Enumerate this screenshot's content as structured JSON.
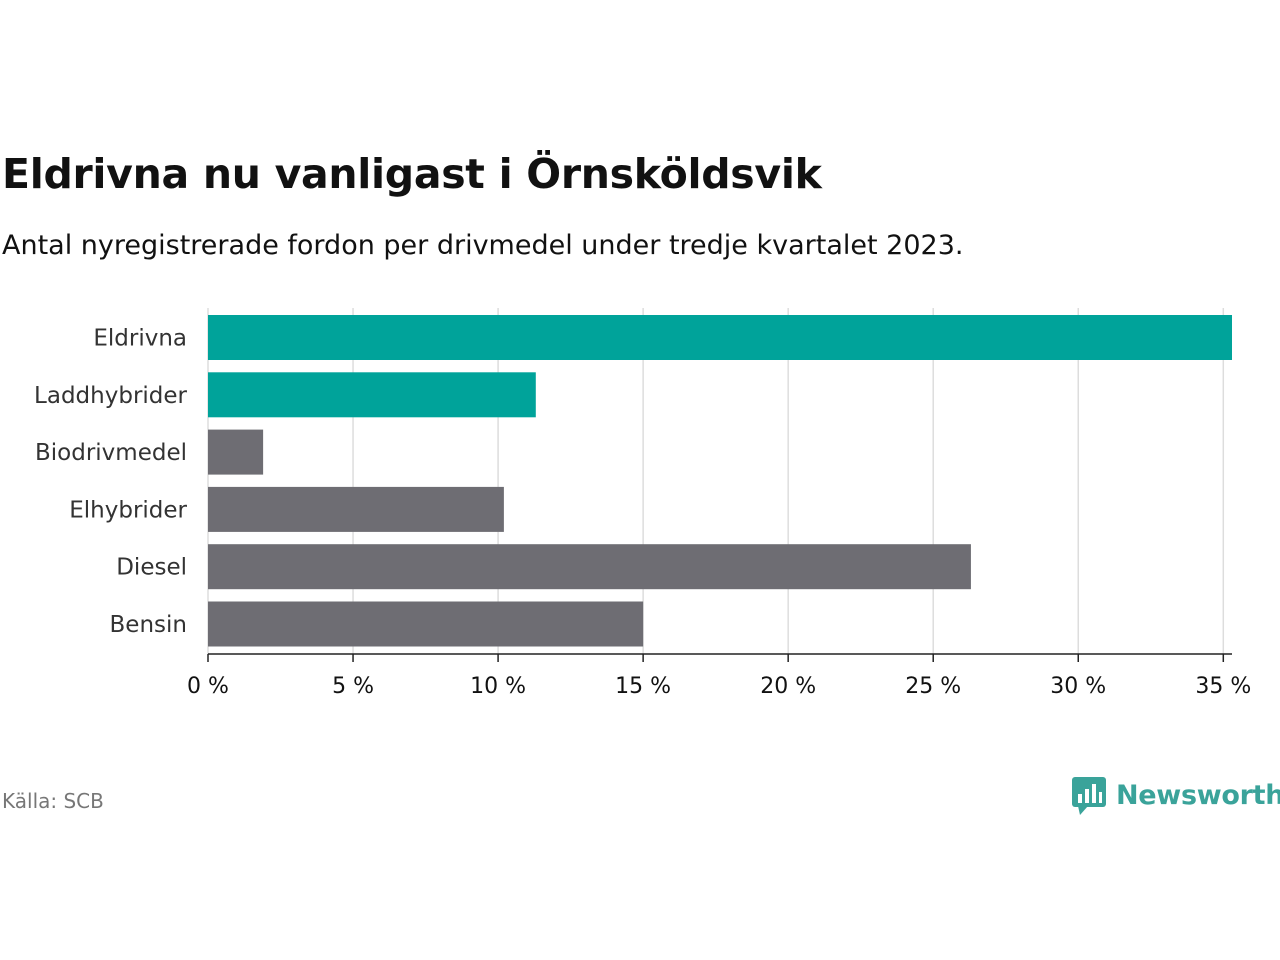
{
  "header": {
    "title": "Eldrivna nu vanligast i Örnsköldsvik",
    "subtitle": "Antal nyregistrerade fordon per drivmedel under tredje kvartalet 2023."
  },
  "footer": {
    "source": "Källa: SCB",
    "brand": "Newsworthy"
  },
  "colors": {
    "highlight": "#00a39a",
    "base": "#6e6d73",
    "grid": "#dddddd",
    "axis": "#222222",
    "brand": "#3aa39a"
  },
  "chart_data": {
    "type": "bar",
    "orientation": "horizontal",
    "title": "Eldrivna nu vanligast i Örnsköldsvik",
    "subtitle": "Antal nyregistrerade fordon per drivmedel under tredje kvartalet 2023.",
    "xlabel": "",
    "ylabel": "",
    "categories": [
      "Eldrivna",
      "Laddhybrider",
      "Biodrivmedel",
      "Elhybrider",
      "Diesel",
      "Bensin"
    ],
    "values": [
      35.3,
      11.3,
      1.9,
      10.2,
      26.3,
      15.0
    ],
    "highlighted": [
      true,
      true,
      false,
      false,
      false,
      false
    ],
    "xlim": [
      0,
      35.3
    ],
    "ticks": [
      0,
      5,
      10,
      15,
      20,
      25,
      30,
      35
    ],
    "tick_labels": [
      "0 %",
      "5 %",
      "10 %",
      "15 %",
      "20 %",
      "25 %",
      "30 %",
      "35 %"
    ],
    "grid": true,
    "unit": "%"
  }
}
